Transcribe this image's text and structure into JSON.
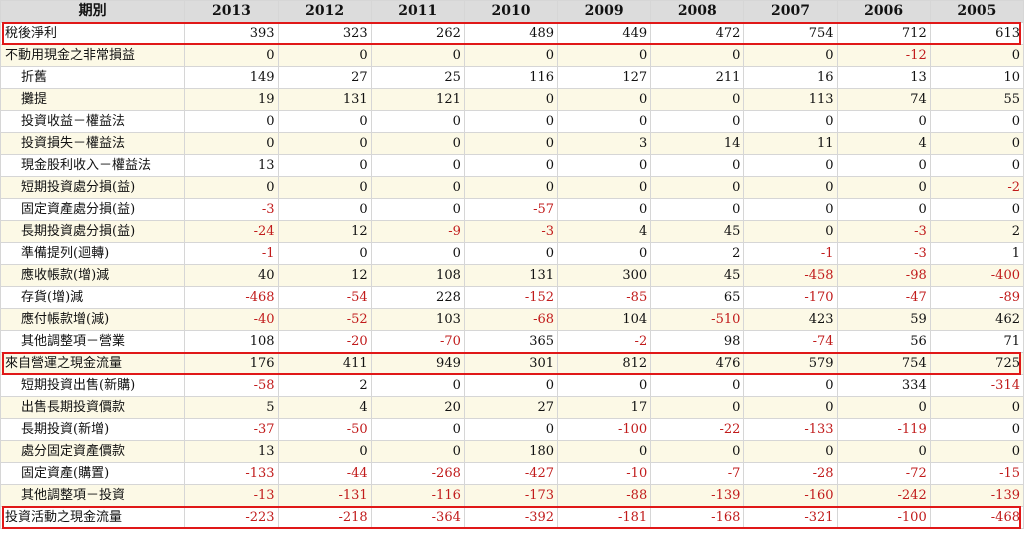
{
  "header": {
    "period_label": "期別",
    "years": [
      "2013",
      "2012",
      "2011",
      "2010",
      "2009",
      "2008",
      "2007",
      "2006",
      "2005"
    ]
  },
  "rows": [
    {
      "label": "稅後淨利",
      "indent": false,
      "values": [
        "393",
        "323",
        "262",
        "489",
        "449",
        "472",
        "754",
        "712",
        "613"
      ]
    },
    {
      "label": "不動用現金之非常損益",
      "indent": false,
      "values": [
        "0",
        "0",
        "0",
        "0",
        "0",
        "0",
        "0",
        "-12",
        "0"
      ]
    },
    {
      "label": "折舊",
      "indent": true,
      "values": [
        "149",
        "27",
        "25",
        "116",
        "127",
        "211",
        "16",
        "13",
        "10"
      ]
    },
    {
      "label": "攤提",
      "indent": true,
      "values": [
        "19",
        "131",
        "121",
        "0",
        "0",
        "0",
        "113",
        "74",
        "55"
      ]
    },
    {
      "label": "投資收益－權益法",
      "indent": true,
      "values": [
        "0",
        "0",
        "0",
        "0",
        "0",
        "0",
        "0",
        "0",
        "0"
      ]
    },
    {
      "label": "投資損失－權益法",
      "indent": true,
      "values": [
        "0",
        "0",
        "0",
        "0",
        "3",
        "14",
        "11",
        "4",
        "0"
      ]
    },
    {
      "label": "現金股利收入－權益法",
      "indent": true,
      "values": [
        "13",
        "0",
        "0",
        "0",
        "0",
        "0",
        "0",
        "0",
        "0"
      ]
    },
    {
      "label": "短期投資處分損(益)",
      "indent": true,
      "values": [
        "0",
        "0",
        "0",
        "0",
        "0",
        "0",
        "0",
        "0",
        "-2"
      ]
    },
    {
      "label": "固定資產處分損(益)",
      "indent": true,
      "values": [
        "-3",
        "0",
        "0",
        "-57",
        "0",
        "0",
        "0",
        "0",
        "0"
      ]
    },
    {
      "label": "長期投資處分損(益)",
      "indent": true,
      "values": [
        "-24",
        "12",
        "-9",
        "-3",
        "4",
        "45",
        "0",
        "-3",
        "2"
      ]
    },
    {
      "label": "準備提列(迴轉)",
      "indent": true,
      "values": [
        "-1",
        "0",
        "0",
        "0",
        "0",
        "2",
        "-1",
        "-3",
        "1"
      ]
    },
    {
      "label": "應收帳款(增)減",
      "indent": true,
      "values": [
        "40",
        "12",
        "108",
        "131",
        "300",
        "45",
        "-458",
        "-98",
        "-400"
      ]
    },
    {
      "label": "存貨(增)減",
      "indent": true,
      "values": [
        "-468",
        "-54",
        "228",
        "-152",
        "-85",
        "65",
        "-170",
        "-47",
        "-89"
      ]
    },
    {
      "label": "應付帳款增(減)",
      "indent": true,
      "values": [
        "-40",
        "-52",
        "103",
        "-68",
        "104",
        "-510",
        "423",
        "59",
        "462"
      ]
    },
    {
      "label": "其他調整項－營業",
      "indent": true,
      "values": [
        "108",
        "-20",
        "-70",
        "365",
        "-2",
        "98",
        "-74",
        "56",
        "71"
      ]
    },
    {
      "label": "來自營運之現金流量",
      "indent": false,
      "values": [
        "176",
        "411",
        "949",
        "301",
        "812",
        "476",
        "579",
        "754",
        "725"
      ]
    },
    {
      "label": "短期投資出售(新購)",
      "indent": true,
      "values": [
        "-58",
        "2",
        "0",
        "0",
        "0",
        "0",
        "0",
        "334",
        "-314"
      ]
    },
    {
      "label": "出售長期投資價款",
      "indent": true,
      "values": [
        "5",
        "4",
        "20",
        "27",
        "17",
        "0",
        "0",
        "0",
        "0"
      ]
    },
    {
      "label": "長期投資(新增)",
      "indent": true,
      "values": [
        "-37",
        "-50",
        "0",
        "0",
        "-100",
        "-22",
        "-133",
        "-119",
        "0"
      ]
    },
    {
      "label": "處分固定資產價款",
      "indent": true,
      "values": [
        "13",
        "0",
        "0",
        "180",
        "0",
        "0",
        "0",
        "0",
        "0"
      ]
    },
    {
      "label": "固定資產(購置)",
      "indent": true,
      "values": [
        "-133",
        "-44",
        "-268",
        "-427",
        "-10",
        "-7",
        "-28",
        "-72",
        "-15"
      ]
    },
    {
      "label": "其他調整項－投資",
      "indent": true,
      "values": [
        "-13",
        "-131",
        "-116",
        "-173",
        "-88",
        "-139",
        "-160",
        "-242",
        "-139"
      ]
    },
    {
      "label": "投資活動之現金流量",
      "indent": false,
      "values": [
        "-223",
        "-218",
        "-364",
        "-392",
        "-181",
        "-168",
        "-321",
        "-100",
        "-468"
      ]
    }
  ],
  "highlighted_rows": [
    0,
    15,
    22
  ],
  "colors": {
    "negative": "#c11b1b",
    "highlight": "#e01818",
    "header_bg": "#dcdcdc",
    "alt_row": "#fcf9e6"
  }
}
